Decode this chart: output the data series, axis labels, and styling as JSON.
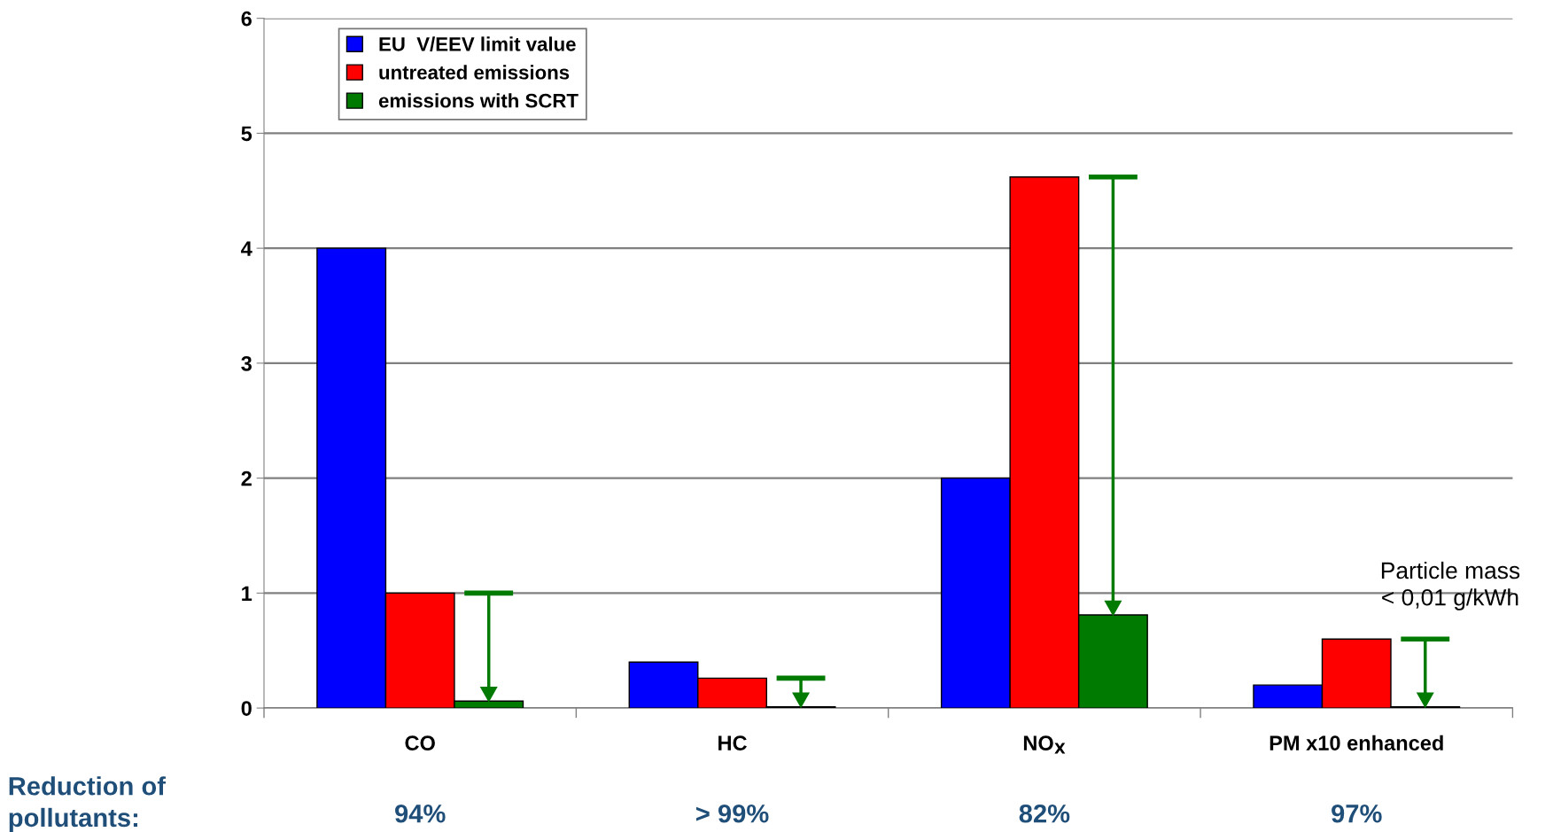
{
  "chart_data": {
    "type": "bar",
    "categories": [
      "CO",
      "HC",
      "NO$_{X}$",
      "PM x10 enhanced"
    ],
    "series": [
      {
        "name": "EU  V/EEV limit value",
        "color": "#0000ff",
        "values": [
          4.0,
          0.4,
          2.0,
          0.2
        ]
      },
      {
        "name": "untreated emissions",
        "color": "#ff0000",
        "values": [
          1.0,
          0.26,
          4.62,
          0.6
        ]
      },
      {
        "name": "emissions with SCRT",
        "color": "#007a00",
        "values": [
          0.06,
          0.01,
          0.81,
          0.01
        ]
      }
    ],
    "ylim": [
      0,
      6
    ],
    "yticks": [
      0,
      1,
      2,
      3,
      4,
      5,
      6
    ],
    "grid": "y",
    "legend": "top left",
    "annotations": [
      "Particle mass\n< 0,01 g/kWh",
      "Reduction of\npollutants:",
      "94%",
      "> 99%",
      "82%",
      "97%"
    ]
  }
}
